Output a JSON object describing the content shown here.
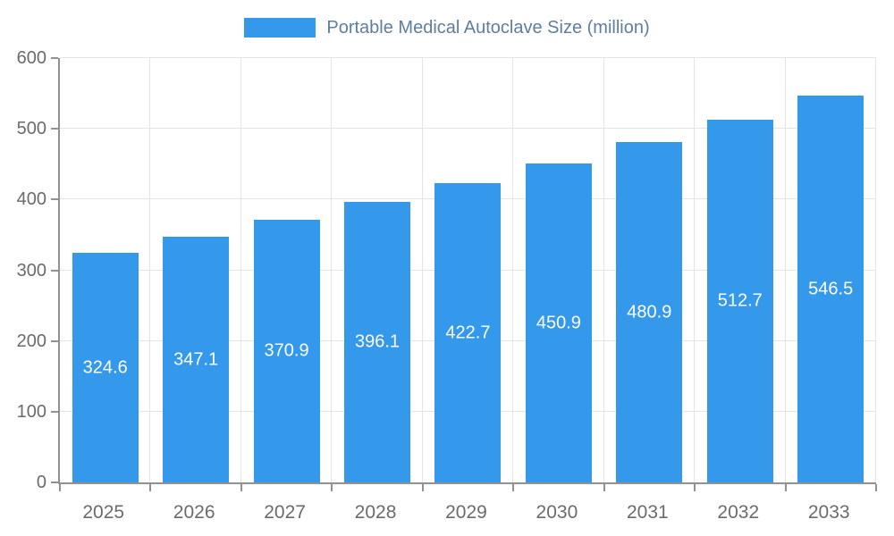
{
  "legend": {
    "label": "Portable Medical Autoclave Size (million)",
    "swatch_color": "#3498eb"
  },
  "chart_data": {
    "type": "bar",
    "title": "Portable Medical Autoclave Size (million)",
    "categories": [
      "2025",
      "2026",
      "2027",
      "2028",
      "2029",
      "2030",
      "2031",
      "2032",
      "2033"
    ],
    "values": [
      324.6,
      347.1,
      370.9,
      396.1,
      422.7,
      450.9,
      480.9,
      512.7,
      546.5
    ],
    "xlabel": "",
    "ylabel": "",
    "ylim": [
      0,
      600
    ],
    "yticks": [
      0,
      100,
      200,
      300,
      400,
      500,
      600
    ],
    "grid": true,
    "legend_position": "top",
    "bar_color": "#3498eb",
    "value_label_color": "#ffffff",
    "value_label_decimals": 1
  }
}
